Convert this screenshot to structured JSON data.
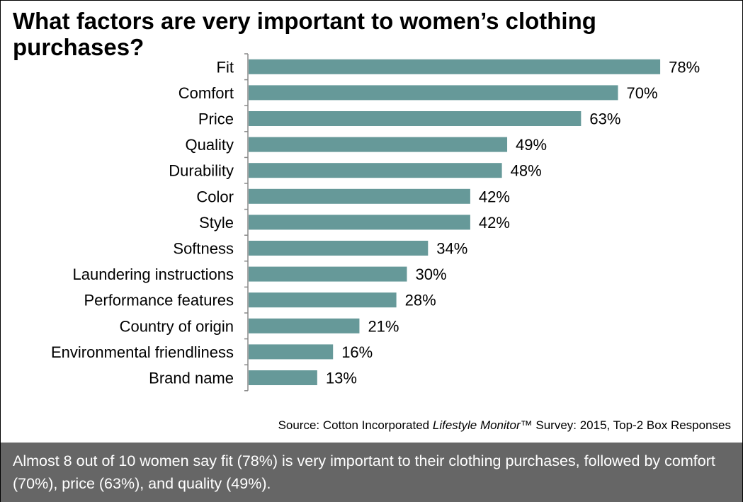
{
  "title": "What factors are very important to women’s clothing purchases?",
  "source": {
    "prefix": "Source: Cotton Incorporated ",
    "italic": "Lifestyle Monitor",
    "suffix": "™ Survey: 2015, Top-2 Box Responses"
  },
  "footer": "Almost 8 out of 10 women say fit (78%) is very important to their clothing purchases, followed by comfort (70%), price (63%), and quality (49%).",
  "colors": {
    "bar": "#669999",
    "footer_bg": "#666666"
  },
  "chart_data": {
    "type": "bar",
    "orientation": "horizontal",
    "categories": [
      "Fit",
      "Comfort",
      "Price",
      "Quality",
      "Durability",
      "Color",
      "Style",
      "Softness",
      "Laundering instructions",
      "Performance features",
      "Country of origin",
      "Environmental friendliness",
      "Brand name"
    ],
    "values": [
      78,
      70,
      63,
      49,
      48,
      42,
      42,
      34,
      30,
      28,
      21,
      16,
      13
    ],
    "value_labels": [
      "78%",
      "70%",
      "63%",
      "49%",
      "48%",
      "42%",
      "42%",
      "34%",
      "30%",
      "28%",
      "21%",
      "16%",
      "13%"
    ],
    "xlim": [
      0,
      100
    ],
    "grid": false,
    "legend": "none",
    "title": "What factors are very important to women’s clothing purchases?"
  }
}
